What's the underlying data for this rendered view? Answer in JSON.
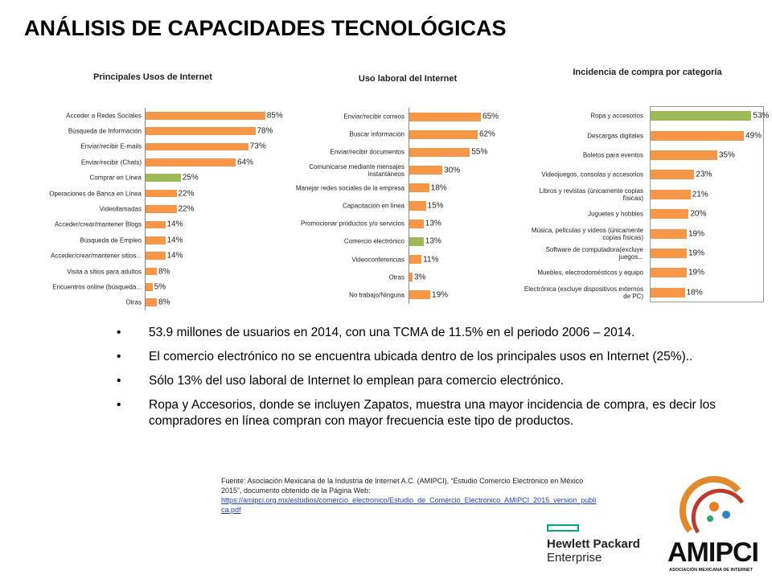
{
  "title": "ANÁLISIS DE CAPACIDADES TECNOLÓGICAS",
  "chart_data": [
    {
      "type": "bar",
      "orientation": "horizontal",
      "title": "Principales Usos de Internet",
      "categories": [
        "Acceder a Redes Sociales",
        "Búsqueda de Información",
        "Enviar/recibir E-mails",
        "Enviar/recibir (Chats)",
        "Comprar en Línea",
        "Operaciones de Banca en Línea",
        "Videollamadas",
        "Acceder/crear/mantener Blogs",
        "Búsqueda de Empleo",
        "Acceder/crear/mantener sitios...",
        "Visita a sitios para adultos",
        "Encuentros online (búsqueda...",
        "Otras"
      ],
      "values": [
        85,
        78,
        73,
        64,
        25,
        22,
        22,
        14,
        14,
        14,
        8,
        5,
        8
      ],
      "value_labels": [
        "85%",
        "78%",
        "73%",
        "64%",
        "25%",
        "22%",
        "22%",
        "14%",
        "14%",
        "14%",
        "8%",
        "5%",
        "8%"
      ],
      "colors": [
        "#f79646",
        "#f79646",
        "#f79646",
        "#f79646",
        "#9bbb59",
        "#f79646",
        "#f79646",
        "#f79646",
        "#f79646",
        "#f79646",
        "#f79646",
        "#f79646",
        "#f79646"
      ],
      "xlim": [
        0,
        100
      ]
    },
    {
      "type": "bar",
      "orientation": "horizontal",
      "title": "Uso laboral del Internet",
      "categories": [
        "Enviar/recibir correos",
        "Buscar información",
        "Enviar/recibir documentos",
        "Comunicarse mediante mensajes instantáneos",
        "Manejar redes sociales de la empresa",
        "Capacitación en línea",
        "Promocionar productos y/o servicios",
        "Comercio electrónico",
        "Videoconferencias",
        "Otras",
        "No trabajo/Ninguna"
      ],
      "values": [
        65,
        62,
        55,
        30,
        18,
        15,
        13,
        13,
        11,
        3,
        19
      ],
      "value_labels": [
        "65%",
        "62%",
        "55%",
        "30%",
        "18%",
        "15%",
        "13%",
        "13%",
        "11%",
        "3%",
        "19%"
      ],
      "colors": [
        "#f79646",
        "#f79646",
        "#f79646",
        "#f79646",
        "#f79646",
        "#f79646",
        "#f79646",
        "#9bbb59",
        "#f79646",
        "#f79646",
        "#f79646"
      ],
      "xlim": [
        0,
        100
      ]
    },
    {
      "type": "bar",
      "orientation": "horizontal",
      "title": "Incidencia de compra por categoría",
      "categories": [
        "Ropa y accesorios",
        "Descargas digitales",
        "Boletos para eventos",
        "Videojuegos, consolas y accesorios",
        "Libros y revistas (únicamente copias físicas)",
        "Juguetes y hobbies",
        "Música, películas y videos (únicamente copias físicas)",
        "Software de computadora(excluye juegos...",
        "Muebles, electrodomésticos y equipo",
        "Electrónica (excluye dispositivos externos de PC)"
      ],
      "values": [
        53,
        49,
        35,
        23,
        21,
        20,
        19,
        19,
        19,
        18
      ],
      "value_labels": [
        "53%",
        "49%",
        "35%",
        "23%",
        "21%",
        "20%",
        "19%",
        "19%",
        "19%",
        "18%"
      ],
      "colors": [
        "#9bbb59",
        "#f79646",
        "#f79646",
        "#f79646",
        "#f79646",
        "#f79646",
        "#f79646",
        "#f79646",
        "#f79646",
        "#f79646"
      ],
      "xlim": [
        0,
        60
      ]
    }
  ],
  "bullets": [
    "53.9 millones de usuarios en 2014, con una TCMA de 11.5% en el periodo 2006 – 2014.",
    "El comercio electrónico no se encuentra ubicada dentro de los principales usos en Internet (25%)..",
    "Sólo 13% del uso laboral de Internet lo emplean para comercio electrónico.",
    "Ropa y Accesorios, donde se incluyen Zapatos, muestra una mayor incidencia de compra, es decir los compradores en línea compran con mayor frecuencia este tipo de productos."
  ],
  "source": {
    "text": "Fuente: Asociación Mexicana de la Industria de Internet A.C. (AMIPCI), “Estudio Comercio Electrónico en México 2015”, documento obtenido de la Página Web:",
    "link": "https://amipci.org.mx/estudios/comercio_electronico/Estudio_de_Comercio_Electronico_AMIPCI_2015_version_publica.pdf"
  },
  "logos": {
    "hpe": [
      "Hewlett Packard",
      "Enterprise"
    ],
    "amipci": "AMIPCI",
    "amipci_sub": "ASOCIACIÓN MEXICANA DE INTERNET"
  }
}
